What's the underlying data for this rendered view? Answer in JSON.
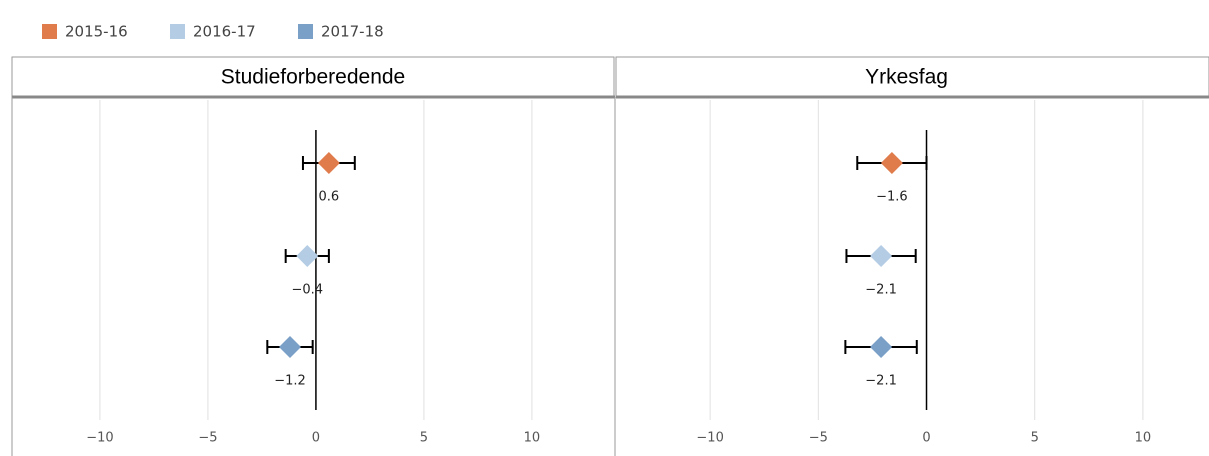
{
  "chart_data": {
    "type": "dot",
    "panels": [
      {
        "title": "Studieforberedende",
        "xlim": [
          -14.07,
          13.8
        ]
      },
      {
        "title": "Yrkesfag",
        "xlim": [
          -14.35,
          12.5
        ]
      }
    ],
    "series": [
      {
        "name": "2015-16",
        "color": "#e07b4c",
        "values": [
          0.6,
          -1.6
        ],
        "errors": [
          1.2,
          1.6
        ],
        "value_labels": [
          "0.6",
          "−1.6"
        ]
      },
      {
        "name": "2016-17",
        "color": "#b4cce4",
        "values": [
          -0.4,
          -2.1
        ],
        "errors": [
          1.0,
          1.6
        ],
        "value_labels": [
          "−0.4",
          "−2.1"
        ]
      },
      {
        "name": "2017-18",
        "color": "#7aa0c8",
        "values": [
          -1.2,
          -2.1
        ],
        "errors": [
          1.05,
          1.65
        ],
        "value_labels": [
          "−1.2",
          "−2.1"
        ]
      }
    ],
    "xticks": [
      {
        "value": -10,
        "label": "−10"
      },
      {
        "value": -5,
        "label": "−5"
      },
      0,
      5,
      10
    ],
    "grid": true
  }
}
